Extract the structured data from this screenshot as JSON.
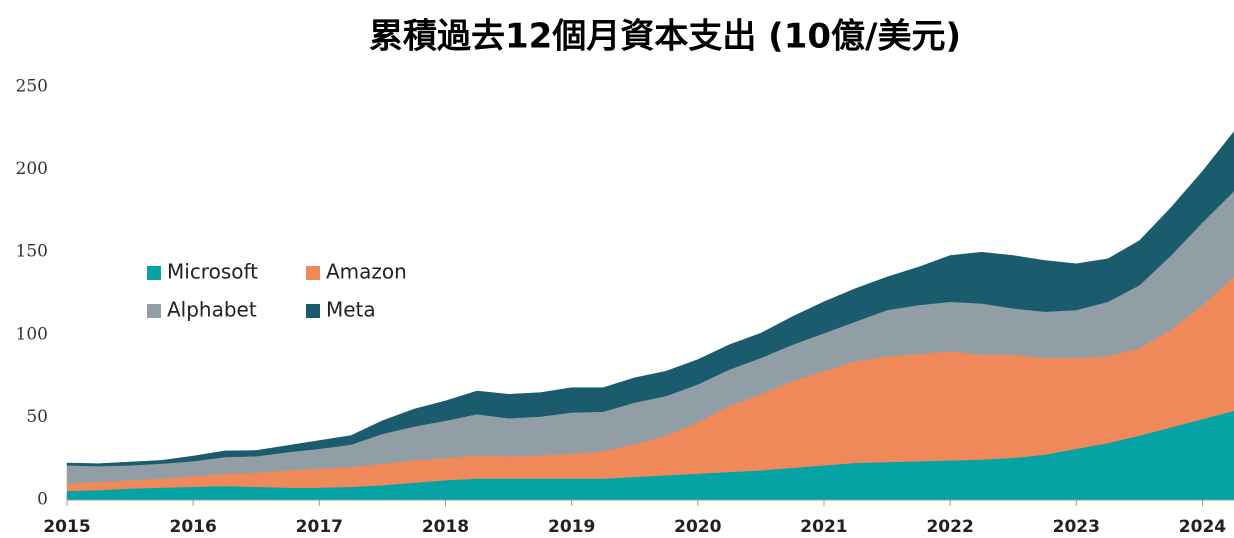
{
  "chart_data": {
    "type": "stacked_area",
    "title": "累積過去12個月資本支出 (10億/美元)",
    "x": [
      2015,
      2015.25,
      2015.5,
      2015.75,
      2016,
      2016.25,
      2016.5,
      2016.75,
      2017,
      2017.25,
      2017.5,
      2017.75,
      2018,
      2018.25,
      2018.5,
      2018.75,
      2019,
      2019.25,
      2019.5,
      2019.75,
      2020,
      2020.25,
      2020.5,
      2020.75,
      2021,
      2021.25,
      2021.5,
      2021.75,
      2022,
      2022.25,
      2022.5,
      2022.75,
      2023,
      2023.25,
      2023.5,
      2023.75,
      2024,
      2024.25
    ],
    "series": [
      {
        "name": "Microsoft",
        "color": "#06a3a5",
        "values": [
          5.5,
          6,
          7,
          7.5,
          8,
          8.5,
          8,
          7.5,
          7.5,
          8,
          9,
          10.5,
          12,
          13,
          13,
          13,
          13,
          13,
          14,
          15,
          16,
          17,
          18,
          19.5,
          21,
          22.5,
          23,
          23.5,
          24,
          24.5,
          25.5,
          27.5,
          31,
          34.5,
          39,
          44,
          49,
          54
        ]
      },
      {
        "name": "Amazon",
        "color": "#f0895a",
        "values": [
          4.5,
          5,
          5,
          5.5,
          6.5,
          7.5,
          8.5,
          10.5,
          11.5,
          12,
          13,
          13.5,
          13.5,
          14,
          13.5,
          14,
          15,
          16.5,
          20,
          24,
          31,
          40,
          46,
          52.5,
          57,
          61.5,
          64,
          65,
          66,
          63.5,
          62.5,
          58.5,
          55,
          52.5,
          53,
          59,
          69,
          81
        ]
      },
      {
        "name": "Alphabet",
        "color": "#929ea6",
        "values": [
          11,
          9.5,
          9,
          9,
          9,
          10,
          10,
          11,
          12,
          13.5,
          18,
          20.5,
          22.5,
          25,
          23,
          23.5,
          25,
          24,
          25,
          24,
          23,
          22,
          22,
          22,
          23,
          24,
          28,
          29.5,
          30,
          31,
          28,
          28,
          29,
          33,
          38,
          45,
          50,
          52
        ]
      },
      {
        "name": "Meta",
        "color": "#1b5b6e",
        "values": [
          1.4,
          1.5,
          2,
          2,
          3.1,
          3.7,
          3.5,
          4,
          5,
          5.5,
          8,
          10.5,
          12,
          14,
          14.5,
          14.5,
          15,
          14.5,
          15,
          15,
          15,
          15,
          15,
          17,
          19,
          20,
          20,
          23,
          28,
          31,
          32,
          31,
          28,
          26,
          27,
          29,
          31,
          36
        ]
      }
    ],
    "xlim": [
      2015,
      2024.25
    ],
    "xticks": [
      2015,
      2016,
      2017,
      2018,
      2019,
      2020,
      2021,
      2022,
      2023,
      2024
    ],
    "ylim": [
      0,
      250
    ],
    "yticks": [
      0,
      50,
      100,
      150,
      200,
      250
    ],
    "grid": false
  }
}
